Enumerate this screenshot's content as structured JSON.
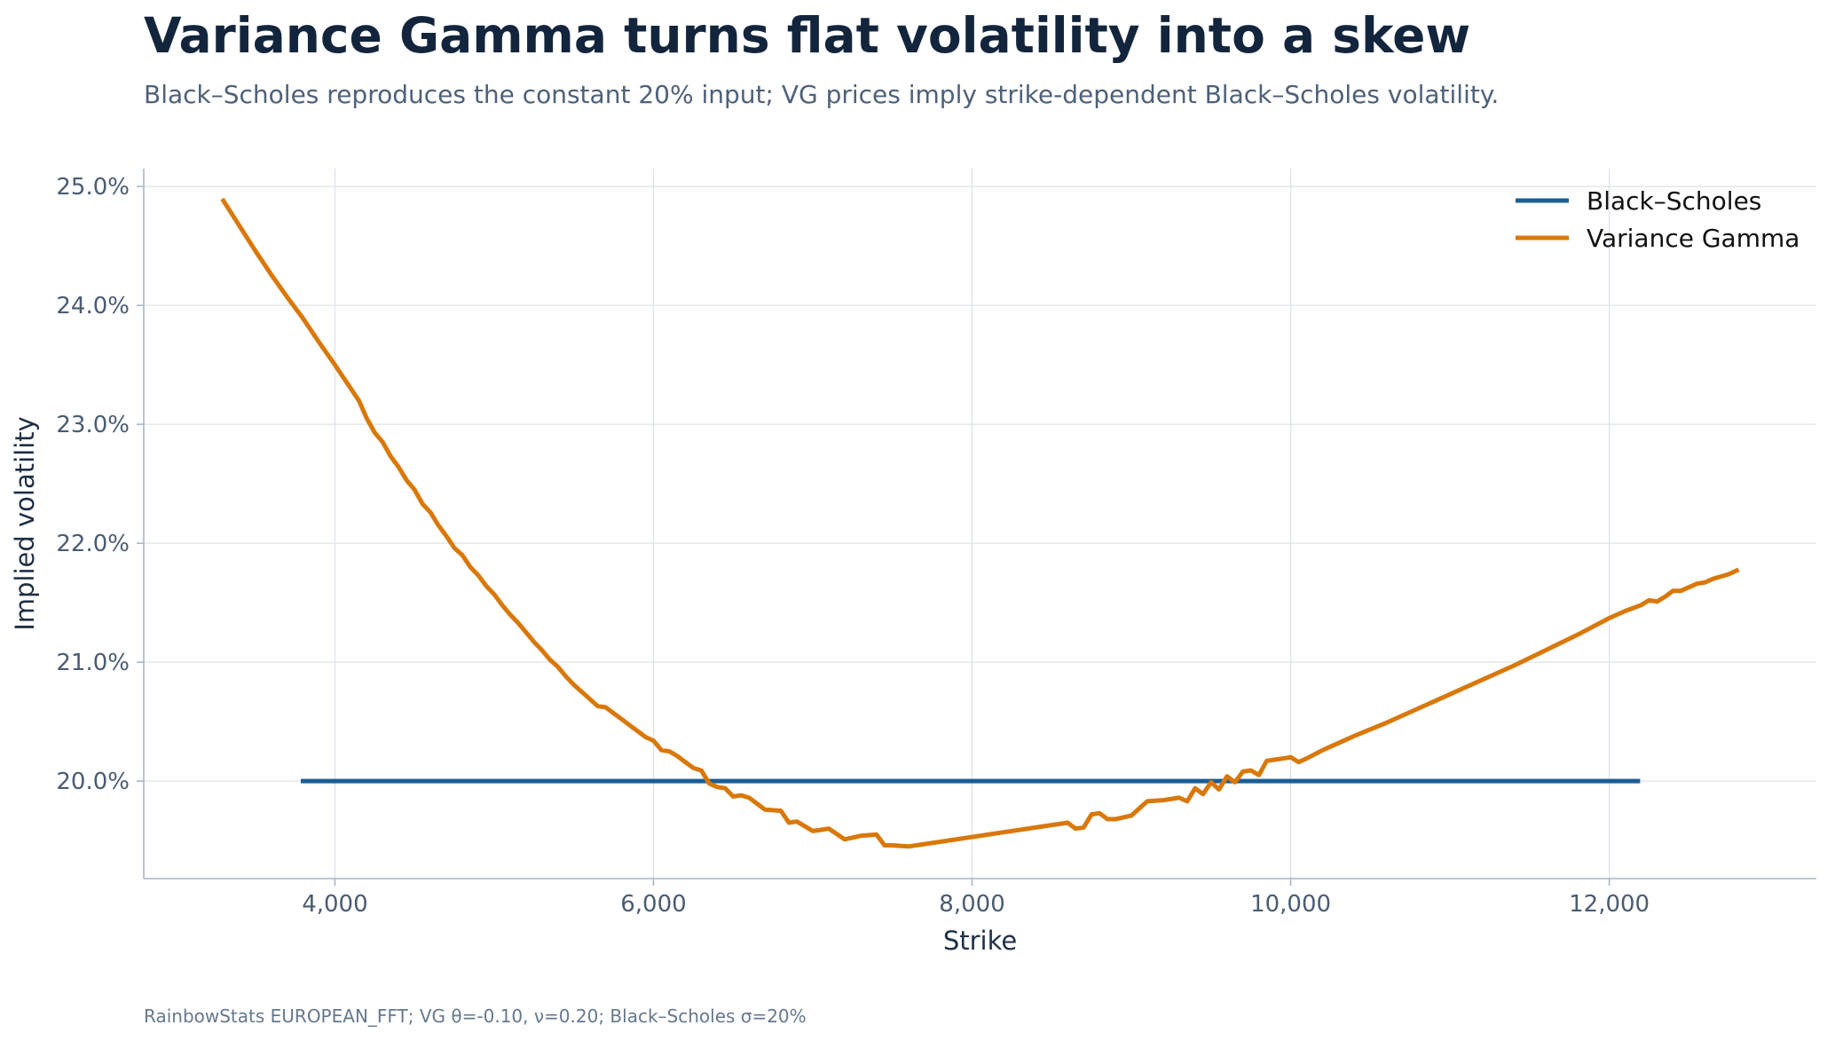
{
  "header": {
    "title": "Variance Gamma turns flat volatility into a skew",
    "subtitle": "Black–Scholes reproduces the constant 20% input; VG prices imply strike-dependent Black–Scholes volatility."
  },
  "footer": {
    "note": "RainbowStats EUROPEAN_FFT; VG θ=-0.10, ν=0.20; Black–Scholes σ=20%"
  },
  "chart_data": {
    "type": "line",
    "title": "Variance Gamma turns flat volatility into a skew",
    "subtitle": "Black–Scholes reproduces the constant 20% input; VG prices imply strike-dependent Black–Scholes volatility.",
    "xlabel": "Strike",
    "ylabel": "Implied volatility",
    "xlim": [
      2800,
      13300
    ],
    "ylim": [
      0.1918,
      0.2515
    ],
    "xticks": [
      4000,
      6000,
      8000,
      10000,
      12000
    ],
    "xtick_labels": [
      "4,000",
      "6,000",
      "8,000",
      "10,000",
      "12,000"
    ],
    "yticks": [
      0.2,
      0.21,
      0.22,
      0.23,
      0.24,
      0.25
    ],
    "ytick_labels": [
      "20.0%",
      "21.0%",
      "22.0%",
      "23.0%",
      "24.0%",
      "25.0%"
    ],
    "grid": true,
    "legend": "top-right",
    "colors": {
      "black_scholes": "#1b5e96",
      "variance_gamma": "#d9780a",
      "grid": "#dde3ea",
      "axis": "#a9b6c6"
    },
    "series": [
      {
        "name": "Black–Scholes",
        "color": "#1b5e96",
        "x": [
          3800,
          12180
        ],
        "y": [
          0.2,
          0.2
        ]
      },
      {
        "name": "Variance Gamma",
        "color": "#d9780a",
        "x": [
          3300,
          3400,
          3500,
          3600,
          3700,
          3800,
          3900,
          4000,
          4100,
          4150,
          4200,
          4250,
          4300,
          4350,
          4400,
          4450,
          4500,
          4550,
          4600,
          4650,
          4700,
          4750,
          4800,
          4850,
          4900,
          4950,
          5000,
          5050,
          5100,
          5150,
          5200,
          5250,
          5300,
          5350,
          5400,
          5450,
          5500,
          5550,
          5600,
          5650,
          5700,
          5750,
          5800,
          5850,
          5900,
          5950,
          6000,
          6050,
          6100,
          6150,
          6200,
          6250,
          6300,
          6350,
          6400,
          6450,
          6500,
          6550,
          6600,
          6700,
          6800,
          6850,
          6900,
          7000,
          7050,
          7100,
          7200,
          7300,
          7400,
          7450,
          7500,
          7600,
          7800,
          8000,
          8200,
          8400,
          8600,
          8650,
          8700,
          8750,
          8800,
          8850,
          8900,
          9000,
          9100,
          9200,
          9300,
          9350,
          9400,
          9450,
          9500,
          9550,
          9600,
          9650,
          9700,
          9750,
          9800,
          9850,
          9900,
          9950,
          10000,
          10050,
          10100,
          10200,
          10400,
          10600,
          10800,
          11000,
          11200,
          11400,
          11600,
          11800,
          12000,
          12100,
          12200,
          12250,
          12300,
          12350,
          12400,
          12450,
          12500,
          12550,
          12600,
          12650,
          12700,
          12750,
          12800
        ],
        "y": [
          0.2488,
          0.2467,
          0.2446,
          0.2426,
          0.2407,
          0.2389,
          0.2369,
          0.235,
          0.233,
          0.232,
          0.2305,
          0.2293,
          0.2285,
          0.2273,
          0.2264,
          0.2253,
          0.2245,
          0.2233,
          0.2226,
          0.2215,
          0.2206,
          0.2196,
          0.219,
          0.218,
          0.2173,
          0.2164,
          0.2157,
          0.2148,
          0.214,
          0.2133,
          0.2125,
          0.2117,
          0.211,
          0.2102,
          0.2096,
          0.2088,
          0.2081,
          0.2075,
          0.2069,
          0.2063,
          0.2062,
          0.2057,
          0.2052,
          0.2047,
          0.2042,
          0.2037,
          0.2034,
          0.2026,
          0.2025,
          0.2021,
          0.2016,
          0.2011,
          0.2009,
          0.1998,
          0.1995,
          0.1994,
          0.1987,
          0.1988,
          0.1986,
          0.1976,
          0.1975,
          0.1965,
          0.1966,
          0.1958,
          0.1959,
          0.196,
          0.1951,
          0.1954,
          0.1955,
          0.1946,
          0.1946,
          0.1945,
          0.1949,
          0.1953,
          0.1957,
          0.1961,
          0.1965,
          0.196,
          0.1961,
          0.1972,
          0.1973,
          0.1968,
          0.1968,
          0.1971,
          0.1983,
          0.1984,
          0.1986,
          0.1983,
          0.1994,
          0.1989,
          0.1999,
          0.1993,
          0.2004,
          0.1999,
          0.2008,
          0.2009,
          0.2005,
          0.2017,
          0.2018,
          0.2019,
          0.202,
          0.2016,
          0.2019,
          0.2026,
          0.2038,
          0.2049,
          0.2061,
          0.2073,
          0.2085,
          0.2097,
          0.211,
          0.2123,
          0.2137,
          0.2143,
          0.2148,
          0.2152,
          0.2151,
          0.2155,
          0.216,
          0.216,
          0.2163,
          0.2166,
          0.2167,
          0.217,
          0.2172,
          0.2174,
          0.2177
        ]
      }
    ]
  }
}
